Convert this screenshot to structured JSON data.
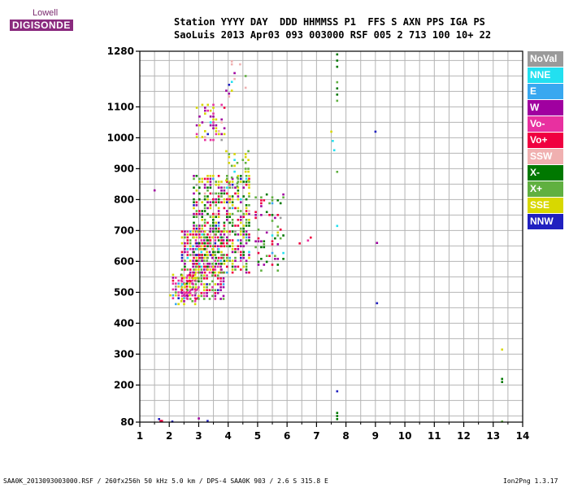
{
  "logo": {
    "top": "Lowell",
    "main": "DIGISONDE"
  },
  "header": {
    "line1": "Station YYYY DAY  DDD HHMMSS P1  FFS S AXN PPS IGA PS",
    "line2": "SaoLuis 2013 Apr03 093 003000 RSF 005 2 713 100 10+ 22"
  },
  "legend": [
    {
      "label": "NoVal",
      "color": "#9a9a9a"
    },
    {
      "label": "NNE",
      "color": "#22e0f0"
    },
    {
      "label": "E",
      "color": "#38a8f0"
    },
    {
      "label": "W",
      "color": "#a000a0"
    },
    {
      "label": "Vo-",
      "color": "#e830a0"
    },
    {
      "label": "Vo+",
      "color": "#f00040"
    },
    {
      "label": "SSW",
      "color": "#f0b0b0"
    },
    {
      "label": "X-",
      "color": "#007800"
    },
    {
      "label": "X+",
      "color": "#60b040"
    },
    {
      "label": "SSE",
      "color": "#d8d800"
    },
    {
      "label": "NNW",
      "color": "#2020c0"
    }
  ],
  "footer": {
    "left": "SAA0K_2013093003000.RSF / 260fx256h 50 kHz 5.0 km / DPS-4 SAA0K 903 / 2.6 S 315.8 E",
    "right": "Ion2Png 1.3.17"
  },
  "chart_data": {
    "type": "scatter",
    "title": "",
    "xlabel": "",
    "ylabel": "",
    "xlim": [
      1,
      14
    ],
    "ylim": [
      80,
      1280
    ],
    "x_ticks": [
      1,
      2,
      3,
      4,
      5,
      6,
      7,
      8,
      9,
      10,
      11,
      12,
      13,
      14
    ],
    "y_ticks": [
      80,
      200,
      300,
      400,
      500,
      600,
      700,
      800,
      900,
      1000,
      1100,
      1280
    ],
    "grid": true,
    "clusters": [
      {
        "x_range": [
          2.0,
          3.0
        ],
        "y_range": [
          460,
          560
        ],
        "density": 0.55,
        "dominant": [
          "Vo+",
          "Vo-",
          "W",
          "SSE"
        ]
      },
      {
        "x_range": [
          2.4,
          3.9
        ],
        "y_range": [
          480,
          700
        ],
        "density": 0.65,
        "dominant": [
          "Vo+",
          "Vo-",
          "W",
          "SSE",
          "X+"
        ]
      },
      {
        "x_range": [
          2.8,
          4.7
        ],
        "y_range": [
          560,
          880
        ],
        "density": 0.55,
        "dominant": [
          "SSE",
          "X-",
          "X+",
          "W",
          "Vo+"
        ]
      },
      {
        "x_range": [
          3.9,
          4.7
        ],
        "y_range": [
          840,
          960
        ],
        "density": 0.25,
        "dominant": [
          "SSE",
          "X+"
        ]
      },
      {
        "x_range": [
          4.9,
          5.9
        ],
        "y_range": [
          570,
          820
        ],
        "density": 0.2,
        "dominant": [
          "X-",
          "X+",
          "Vo+",
          "W"
        ]
      },
      {
        "x_range": [
          2.9,
          3.9
        ],
        "y_range": [
          990,
          1110
        ],
        "density": 0.3,
        "dominant": [
          "W",
          "Vo-",
          "SSE"
        ]
      },
      {
        "x_range": [
          3.9,
          4.6
        ],
        "y_range": [
          1120,
          1260
        ],
        "density": 0.12,
        "dominant": [
          "SSW",
          "W",
          "SSE"
        ]
      },
      {
        "x_range": [
          6.3,
          6.9
        ],
        "y_range": [
          660,
          690
        ],
        "density": 0.15,
        "dominant": [
          "Vo+"
        ]
      }
    ],
    "points": [
      {
        "x": 1.5,
        "y": 830,
        "c": "W"
      },
      {
        "x": 1.65,
        "y": 90,
        "c": "NNW"
      },
      {
        "x": 1.7,
        "y": 84,
        "c": "Vo+"
      },
      {
        "x": 1.75,
        "y": 84,
        "c": "Vo+"
      },
      {
        "x": 2.1,
        "y": 82,
        "c": "NNW"
      },
      {
        "x": 3.0,
        "y": 92,
        "c": "W"
      },
      {
        "x": 3.3,
        "y": 84,
        "c": "NNW"
      },
      {
        "x": 7.5,
        "y": 1020,
        "c": "SSE"
      },
      {
        "x": 7.55,
        "y": 990,
        "c": "NNE"
      },
      {
        "x": 7.6,
        "y": 960,
        "c": "NNE"
      },
      {
        "x": 7.7,
        "y": 1270,
        "c": "X-"
      },
      {
        "x": 7.7,
        "y": 1250,
        "c": "X-"
      },
      {
        "x": 7.7,
        "y": 1230,
        "c": "X-"
      },
      {
        "x": 7.7,
        "y": 1180,
        "c": "X+"
      },
      {
        "x": 7.7,
        "y": 1160,
        "c": "X-"
      },
      {
        "x": 7.7,
        "y": 1140,
        "c": "X-"
      },
      {
        "x": 7.7,
        "y": 1120,
        "c": "X+"
      },
      {
        "x": 7.7,
        "y": 890,
        "c": "X+"
      },
      {
        "x": 7.7,
        "y": 715,
        "c": "NNE"
      },
      {
        "x": 7.7,
        "y": 180,
        "c": "NNW"
      },
      {
        "x": 7.7,
        "y": 110,
        "c": "X-"
      },
      {
        "x": 7.7,
        "y": 100,
        "c": "X-"
      },
      {
        "x": 7.7,
        "y": 90,
        "c": "X-"
      },
      {
        "x": 9.0,
        "y": 1020,
        "c": "NNW"
      },
      {
        "x": 9.05,
        "y": 660,
        "c": "W"
      },
      {
        "x": 9.05,
        "y": 465,
        "c": "NNW"
      },
      {
        "x": 13.3,
        "y": 315,
        "c": "SSE"
      },
      {
        "x": 13.3,
        "y": 220,
        "c": "X-"
      },
      {
        "x": 13.3,
        "y": 210,
        "c": "X-"
      },
      {
        "x": 13.3,
        "y": 82,
        "c": "X+"
      }
    ]
  }
}
